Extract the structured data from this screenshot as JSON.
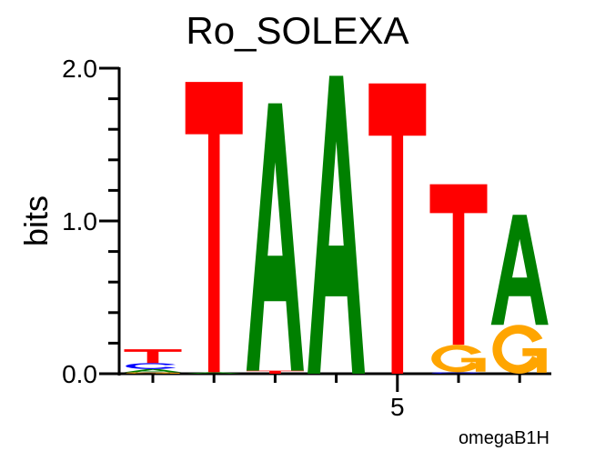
{
  "chart_data": {
    "type": "sequence-logo",
    "title": "Ro_SOLEXA",
    "ylabel": "bits",
    "footer": "omegaB1H",
    "ylim": [
      0,
      2.0
    ],
    "yticks": [
      {
        "value": 0,
        "label": "0.0"
      },
      {
        "value": 1,
        "label": "1.0"
      },
      {
        "value": 2,
        "label": "2.0"
      }
    ],
    "y_minor_step": 0.2,
    "xtick_labels": [
      {
        "position": 5,
        "label": "5"
      }
    ],
    "colors": {
      "A": "#008000",
      "C": "#0000ff",
      "G": "#ffa500",
      "T": "#ff0000"
    },
    "positions": [
      {
        "position": 1,
        "stack": [
          {
            "base": "G",
            "bits": 0.01
          },
          {
            "base": "A",
            "bits": 0.02
          },
          {
            "base": "C",
            "bits": 0.04
          },
          {
            "base": "T",
            "bits": 0.09
          }
        ]
      },
      {
        "position": 2,
        "stack": [
          {
            "base": "A",
            "bits": 0.01
          },
          {
            "base": "T",
            "bits": 1.9
          }
        ]
      },
      {
        "position": 3,
        "stack": [
          {
            "base": "T",
            "bits": 0.02
          },
          {
            "base": "A",
            "bits": 1.75
          }
        ]
      },
      {
        "position": 4,
        "stack": [
          {
            "base": "A",
            "bits": 1.95
          }
        ]
      },
      {
        "position": 5,
        "stack": [
          {
            "base": "T",
            "bits": 1.9
          }
        ]
      },
      {
        "position": 6,
        "stack": [
          {
            "base": "C",
            "bits": 0.01
          },
          {
            "base": "G",
            "bits": 0.18
          },
          {
            "base": "T",
            "bits": 1.05
          }
        ]
      },
      {
        "position": 7,
        "stack": [
          {
            "base": "G",
            "bits": 0.32
          },
          {
            "base": "A",
            "bits": 0.72
          }
        ]
      }
    ]
  }
}
